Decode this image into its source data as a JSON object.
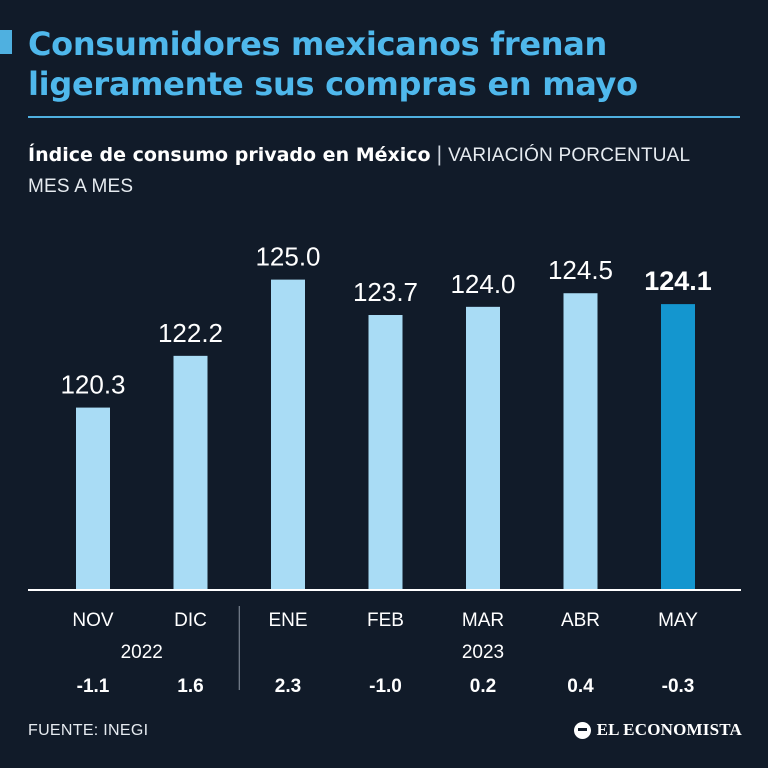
{
  "title": "Consumidores mexicanos frenan ligeramente sus compras en mayo",
  "subtitle": {
    "strong": "Índice de consumo privado en México",
    "separator": "|",
    "light": "VARIACIÓN PORCENTUAL MES A MES"
  },
  "chart_data": {
    "type": "bar",
    "title": "Índice de consumo privado en México",
    "categories": [
      "NOV",
      "DIC",
      "ENE",
      "FEB",
      "MAR",
      "ABR",
      "MAY"
    ],
    "values": [
      120.3,
      122.2,
      125.0,
      123.7,
      124.0,
      124.5,
      124.1
    ],
    "value_labels": [
      "120.3",
      "122.2",
      "125.0",
      "123.7",
      "124.0",
      "124.5",
      "124.1"
    ],
    "monthly_change": [
      -1.1,
      1.6,
      2.3,
      -1.0,
      0.2,
      0.4,
      -0.3
    ],
    "monthly_change_labels": [
      "-1.1",
      "1.6",
      "2.3",
      "-1.0",
      "0.2",
      "0.4",
      "-0.3"
    ],
    "years": [
      {
        "label": "2022",
        "categories": [
          "NOV",
          "DIC"
        ]
      },
      {
        "label": "2023",
        "categories": [
          "ENE",
          "FEB",
          "MAR",
          "ABR",
          "MAY"
        ]
      }
    ],
    "highlight_index": 6,
    "ylim": [
      113.6,
      125.5
    ],
    "colors": {
      "bar": "#a9dcf5",
      "highlight": "#1496cf",
      "axis": "#ffffff",
      "divider": "#8c96a3"
    }
  },
  "source": "FUENTE: INEGI",
  "brand": "EL ECONOMISTA"
}
